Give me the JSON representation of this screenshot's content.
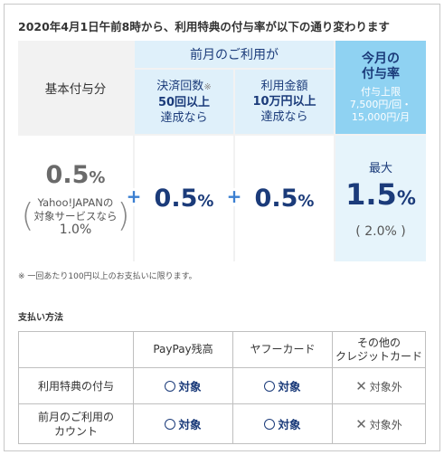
{
  "headline": "2020年4月1日午前8時から、利用特典の付与率が以下の通り変わります",
  "rate_table": {
    "base_header": "基本付与分",
    "prev_header": "前月のご利用が",
    "count_header": {
      "line1": "決済回数",
      "note_mark": "※",
      "line2": "50回以上",
      "line3": "達成なら"
    },
    "amount_header": {
      "line1": "利用金額",
      "line2": "10万円以上",
      "line3": "達成なら"
    },
    "now_header": {
      "line1": "今月の",
      "line2": "付与率",
      "sub1": "付与上限",
      "sub2": "7,500円/回・",
      "sub3": "15,000円/月"
    },
    "base_value": {
      "num": "0.5",
      "sym": "%"
    },
    "base_note": {
      "line1": "Yahoo!JAPANの",
      "line2": "対象サービスなら",
      "line3": "1.0%"
    },
    "count_value": {
      "num": "0.5",
      "sym": "%"
    },
    "amount_value": {
      "num": "0.5",
      "sym": "%"
    },
    "max_label": "最大",
    "max_value": {
      "num": "1.5",
      "sym": "%"
    },
    "max_paren": "( 2.0% )",
    "plus_sign": "+",
    "paren_left": "(",
    "paren_right": ")"
  },
  "footnote": "※ 一回あたり100円以上のお支払いに限ります。",
  "payment_section": {
    "title": "支払い方法",
    "columns": [
      "PayPay残高",
      "ヤフーカード",
      "その他の\nクレジットカード"
    ],
    "rows": [
      {
        "label": "利用特典の付与",
        "cells": [
          "対象",
          "対象",
          "対象外"
        ]
      },
      {
        "label": "前月のご利用の\nカウント",
        "cells": [
          "対象",
          "対象",
          "対象外"
        ]
      }
    ]
  },
  "colors": {
    "navy": "#1b3b7a",
    "light_blue": "#dff0fa",
    "accent_blue": "#8fd2f2",
    "pale_blue": "#e6f4fb",
    "plus_blue": "#3b7fd1"
  }
}
